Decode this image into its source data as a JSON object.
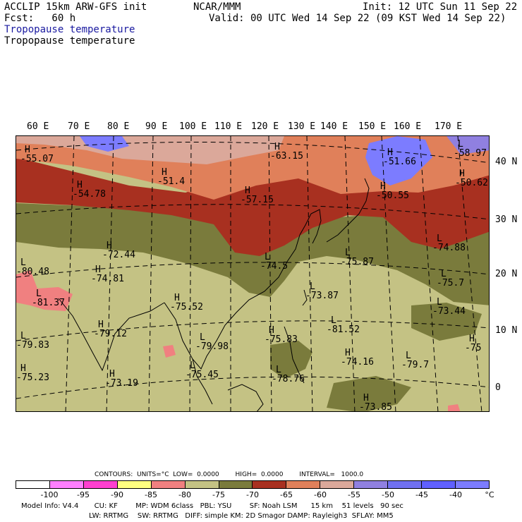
{
  "header": {
    "model": "ACCLIP 15km ARW-GFS init",
    "forecast": "Fcst:   60 h",
    "org": "NCAR/MMM",
    "init": "Init: 12 UTC Sun 11 Sep 22",
    "valid": "Valid: 00 UTC Wed 14 Sep 22 (09 KST Wed 14 Sep 22)",
    "field_blue": "Tropopause temperature",
    "field_black": "Tropopause temperature"
  },
  "map": {
    "lon_labels": [
      "60 E",
      "70 E",
      "80 E",
      "90 E",
      "100 E",
      "110 E",
      "120 E",
      "130 E",
      "140 E",
      "150 E",
      "160 E",
      "170 E"
    ],
    "lat_labels": [
      "40 N",
      "30 N",
      "20 N",
      "10 N",
      "0"
    ],
    "extrema": [
      {
        "kind": "H",
        "value": "-55.07"
      },
      {
        "kind": "H",
        "value": "-54.78"
      },
      {
        "kind": "H",
        "value": "-51.4"
      },
      {
        "kind": "H",
        "value": "-63.15"
      },
      {
        "kind": "H",
        "value": "-57.15"
      },
      {
        "kind": "H",
        "value": "-51.66"
      },
      {
        "kind": "L",
        "value": "-58.97"
      },
      {
        "kind": "H",
        "value": "-50.55"
      },
      {
        "kind": "H",
        "value": "-50.62"
      },
      {
        "kind": "H",
        "value": "-72.44"
      },
      {
        "kind": "L",
        "value": "-74.5"
      },
      {
        "kind": "L",
        "value": "-75.87"
      },
      {
        "kind": "L",
        "value": "-74.88"
      },
      {
        "kind": "L",
        "value": "-80.48"
      },
      {
        "kind": "H",
        "value": "-74.81"
      },
      {
        "kind": "L",
        "value": "-81.37"
      },
      {
        "kind": "H",
        "value": "-75.52"
      },
      {
        "kind": "L",
        "value": "-73.87"
      },
      {
        "kind": "L",
        "value": "-75.7"
      },
      {
        "kind": "L",
        "value": "-73.44"
      },
      {
        "kind": "L",
        "value": "-81.52"
      },
      {
        "kind": "H",
        "value": "-79.12"
      },
      {
        "kind": "L",
        "value": "-79.83"
      },
      {
        "kind": "L",
        "value": "-79.98"
      },
      {
        "kind": "H",
        "value": "-75.83"
      },
      {
        "kind": "H",
        "value": "-75"
      },
      {
        "kind": "H",
        "value": "-74.16"
      },
      {
        "kind": "L",
        "value": "-79.7"
      },
      {
        "kind": "L",
        "value": "-75.45"
      },
      {
        "kind": "H",
        "value": "-75.23"
      },
      {
        "kind": "H",
        "value": "-73.19"
      },
      {
        "kind": "L",
        "value": "-78.76"
      },
      {
        "kind": "H",
        "value": "-73.85"
      }
    ]
  },
  "legend": {
    "contours_line": "CONTOURS:  UNITS=°C  LOW=  0.0000        HIGH=  0.0000        INTERVAL=   1000.0",
    "bins": [
      {
        "color": "#ffffff"
      },
      {
        "color": "#ff7fff"
      },
      {
        "color": "#ff3fd0"
      },
      {
        "color": "#ffff80"
      },
      {
        "color": "#f08080"
      },
      {
        "color": "#c4c284"
      },
      {
        "color": "#7a7b3c"
      },
      {
        "color": "#a83020"
      },
      {
        "color": "#e0805a"
      },
      {
        "color": "#dba89a"
      },
      {
        "color": "#9080e0"
      },
      {
        "color": "#7070f0"
      },
      {
        "color": "#6060ff"
      },
      {
        "color": "#7c7cff"
      }
    ],
    "ticks": [
      "-100",
      "-95",
      "-90",
      "-85",
      "-80",
      "-75",
      "-70",
      "-65",
      "-60",
      "-55",
      "-50",
      "-45",
      "-40"
    ],
    "unit": "°C"
  },
  "footer": {
    "line1": "Model Info: V4.4       CU: KF        MP: WDM 6class   PBL: YSU        SF: Noah LSM      15 km    51 levels   90 sec",
    "line2": "LW: RRTMG    SW: RRTMG   DIFF: simple KM: 2D Smagor DAMP: Rayleigh3  SFLAY: MM5"
  }
}
